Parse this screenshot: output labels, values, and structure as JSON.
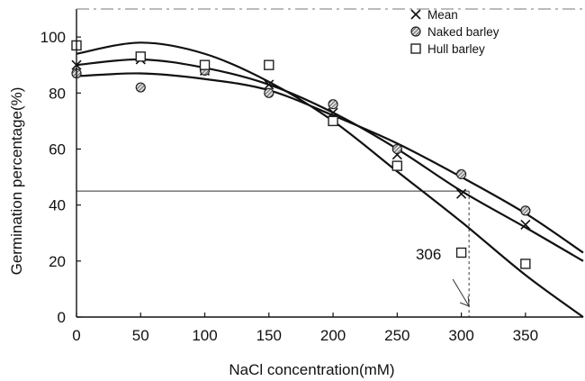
{
  "chart_data": {
    "type": "scatter",
    "xlabel": "NaCl concentration(mM)",
    "ylabel": "Germination percentage(%)",
    "xlim": [
      0,
      395
    ],
    "ylim": [
      0,
      110
    ],
    "x_ticks": [
      0,
      50,
      100,
      150,
      200,
      250,
      300,
      350
    ],
    "y_ticks": [
      0,
      20,
      40,
      60,
      80,
      100
    ],
    "legend_position": "top-right",
    "series": [
      {
        "name": "Mean",
        "marker": "x",
        "x": [
          0,
          50,
          100,
          150,
          200,
          250,
          300,
          350
        ],
        "y": [
          90,
          92,
          88,
          83,
          73,
          58,
          44,
          33
        ],
        "fit_curve": [
          [
            0,
            90
          ],
          [
            50,
            92
          ],
          [
            100,
            89
          ],
          [
            150,
            83
          ],
          [
            200,
            73
          ],
          [
            250,
            60
          ],
          [
            300,
            45
          ],
          [
            350,
            32
          ],
          [
            395,
            20
          ]
        ]
      },
      {
        "name": "Naked barley",
        "marker": "hatched-circle",
        "x": [
          0,
          50,
          100,
          150,
          200,
          250,
          300,
          350
        ],
        "y": [
          87,
          82,
          88,
          80,
          76,
          60,
          51,
          38
        ],
        "fit_curve": [
          [
            0,
            86
          ],
          [
            50,
            87
          ],
          [
            100,
            85
          ],
          [
            150,
            81
          ],
          [
            200,
            72
          ],
          [
            250,
            62
          ],
          [
            300,
            50
          ],
          [
            350,
            37
          ],
          [
            395,
            23
          ]
        ]
      },
      {
        "name": "Hull barley",
        "marker": "square",
        "x": [
          0,
          50,
          100,
          150,
          200,
          250,
          300,
          350
        ],
        "y": [
          97,
          93,
          90,
          90,
          70,
          54,
          23,
          19
        ],
        "fit_curve": [
          [
            0,
            94
          ],
          [
            50,
            98
          ],
          [
            100,
            94
          ],
          [
            150,
            84
          ],
          [
            200,
            70
          ],
          [
            250,
            52
          ],
          [
            300,
            34
          ],
          [
            350,
            15
          ],
          [
            395,
            0
          ]
        ]
      }
    ],
    "reference": {
      "x": 306,
      "y": 45
    },
    "annotation": {
      "text": "306"
    }
  }
}
